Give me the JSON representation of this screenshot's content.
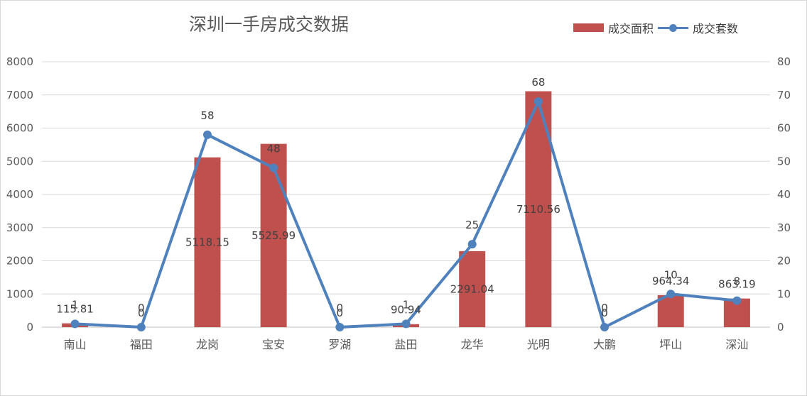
{
  "chart_data": {
    "type": "bar",
    "title": "深圳一手房成交数据",
    "categories": [
      "南山",
      "福田",
      "龙岗",
      "宝安",
      "罗湖",
      "盐田",
      "龙华",
      "光明",
      "大鹏",
      "坪山",
      "深汕"
    ],
    "series": [
      {
        "name": "成交面积",
        "type": "bar",
        "axis": "left",
        "color": "#c0504d",
        "values": [
          115.81,
          0,
          5118.15,
          5525.99,
          0,
          90.94,
          2291.04,
          7110.56,
          0,
          964.34,
          863.19
        ],
        "labels": [
          "115.81",
          "0",
          "5118.15",
          "5525.99",
          "0",
          "90.94",
          "2291.04",
          "7110.56",
          "0",
          "964.34",
          "863.19"
        ]
      },
      {
        "name": "成交套数",
        "type": "line",
        "axis": "right",
        "color": "#4f81bd",
        "values": [
          1,
          0,
          58,
          48,
          0,
          1,
          25,
          68,
          0,
          10,
          8
        ],
        "labels": [
          "1",
          "0",
          "58",
          "48",
          "0",
          "1",
          "25",
          "68",
          "0",
          "10",
          "8"
        ]
      }
    ],
    "y_left": {
      "min": 0,
      "max": 8000,
      "ticks": [
        "0",
        "1000",
        "2000",
        "3000",
        "4000",
        "5000",
        "6000",
        "7000",
        "8000"
      ]
    },
    "y_right": {
      "min": 0,
      "max": 80,
      "ticks": [
        "0",
        "10",
        "20",
        "30",
        "40",
        "50",
        "60",
        "70",
        "80"
      ]
    },
    "grid": true,
    "legend": "top-right"
  }
}
